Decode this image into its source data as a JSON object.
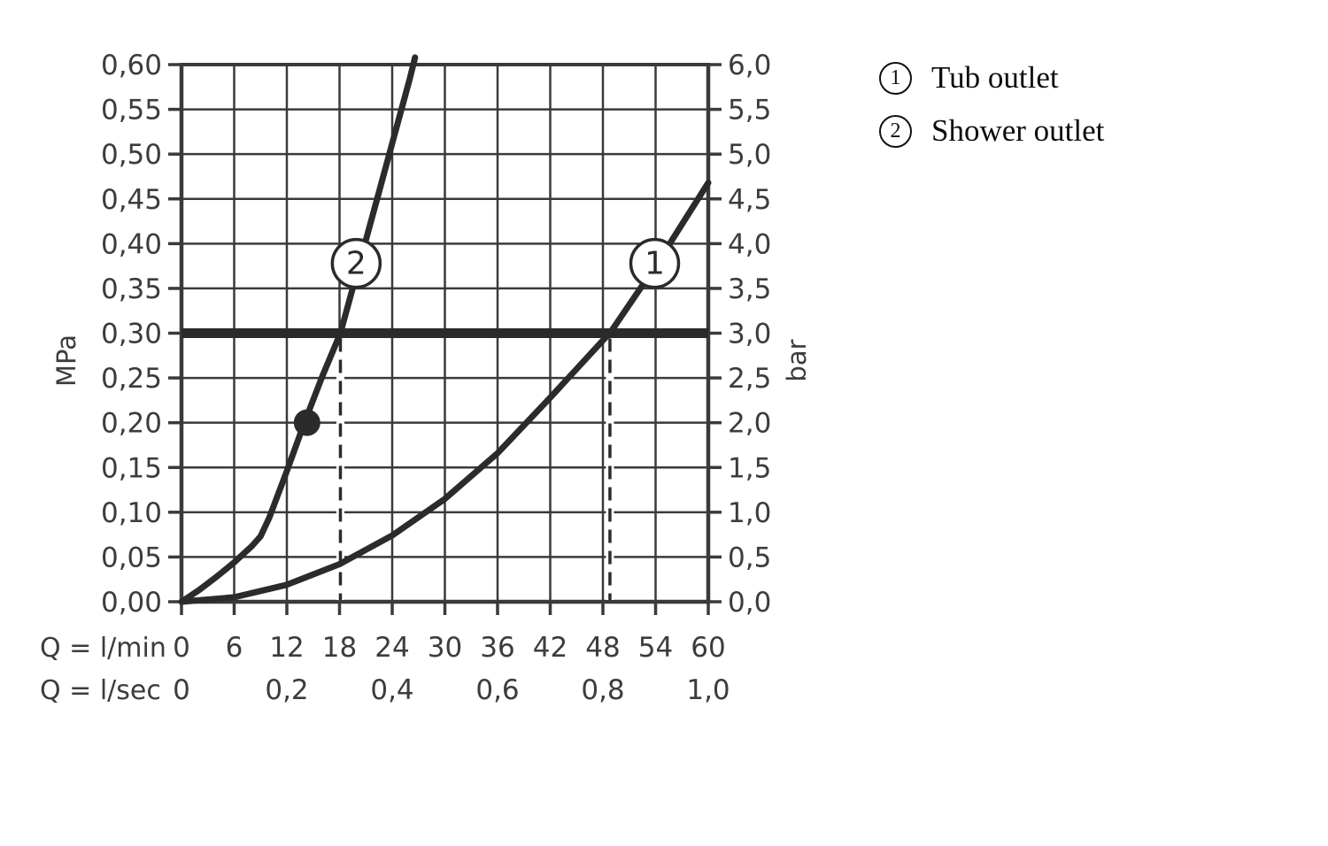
{
  "colors": {
    "background": "#ffffff",
    "ink": "#3c3c3c",
    "grid": "#3a3a3a",
    "curve": "#2b2b2b",
    "legend_text": "#0d0d0d"
  },
  "chart_data": {
    "type": "line",
    "title": "",
    "x_axis": {
      "caption_row1": "Q = l/min",
      "caption_row2": "Q = l/sec",
      "min": 0,
      "max": 60,
      "ticks_lmin": [
        {
          "v": 0,
          "label": "0"
        },
        {
          "v": 6,
          "label": "6"
        },
        {
          "v": 12,
          "label": "12"
        },
        {
          "v": 18,
          "label": "18"
        },
        {
          "v": 24,
          "label": "24"
        },
        {
          "v": 30,
          "label": "30"
        },
        {
          "v": 36,
          "label": "36"
        },
        {
          "v": 42,
          "label": "42"
        },
        {
          "v": 48,
          "label": "48"
        },
        {
          "v": 54,
          "label": "54"
        },
        {
          "v": 60,
          "label": "60"
        }
      ],
      "ticks_lsec": [
        {
          "v": 0,
          "label": "0"
        },
        {
          "v": 12,
          "label": "0,2"
        },
        {
          "v": 24,
          "label": "0,4"
        },
        {
          "v": 36,
          "label": "0,6"
        },
        {
          "v": 48,
          "label": "0,8"
        },
        {
          "v": 60,
          "label": "1,0"
        }
      ]
    },
    "y_axis_left": {
      "unit": "MPa",
      "min": 0,
      "max": 0.6,
      "step": 0.05,
      "tick_labels": [
        "0,00",
        "0,05",
        "0,10",
        "0,15",
        "0,20",
        "0,25",
        "0,30",
        "0,35",
        "0,40",
        "0,45",
        "0,50",
        "0,55",
        "0,60"
      ]
    },
    "y_axis_right": {
      "unit": "bar",
      "min": 0,
      "max": 6,
      "step": 0.5,
      "tick_labels": [
        "0,0",
        "0,5",
        "1,0",
        "1,5",
        "2,0",
        "2,5",
        "3,0",
        "3,5",
        "4,0",
        "4,5",
        "5,0",
        "5,5",
        "6,0"
      ]
    },
    "grid": {
      "x_step": 6,
      "y_step": 0.05
    },
    "reference_line": {
      "y_mpa": 0.3
    },
    "dashed_verticals": [
      {
        "x": 18.1
      },
      {
        "x": 48.8
      }
    ],
    "marker_dot": {
      "x": 14.3,
      "y": 0.2
    },
    "series": [
      {
        "id": "1",
        "name": "Tub outlet",
        "points": [
          [
            0,
            0
          ],
          [
            6,
            0.005
          ],
          [
            12,
            0.019
          ],
          [
            18,
            0.042
          ],
          [
            24,
            0.074
          ],
          [
            30,
            0.115
          ],
          [
            36,
            0.166
          ],
          [
            42,
            0.228
          ],
          [
            48,
            0.292
          ],
          [
            48.8,
            0.3
          ],
          [
            54,
            0.375
          ],
          [
            60,
            0.468
          ]
        ],
        "callout": {
          "x": 53.9,
          "y": 0.378,
          "label": "1"
        }
      },
      {
        "id": "2",
        "name": "Shower outlet",
        "points": [
          [
            0,
            0
          ],
          [
            2,
            0.013
          ],
          [
            4,
            0.028
          ],
          [
            6,
            0.044
          ],
          [
            8,
            0.062
          ],
          [
            9,
            0.073
          ],
          [
            10,
            0.094
          ],
          [
            12,
            0.146
          ],
          [
            14,
            0.2
          ],
          [
            16,
            0.251
          ],
          [
            18.1,
            0.3
          ],
          [
            20,
            0.368
          ],
          [
            22,
            0.44
          ],
          [
            24,
            0.512
          ],
          [
            26,
            0.584
          ],
          [
            26.6,
            0.608
          ]
        ],
        "callout": {
          "x": 19.9,
          "y": 0.378,
          "label": "2"
        }
      }
    ],
    "legend": [
      {
        "marker": "1",
        "label": "Tub outlet"
      },
      {
        "marker": "2",
        "label": "Shower outlet"
      }
    ]
  }
}
